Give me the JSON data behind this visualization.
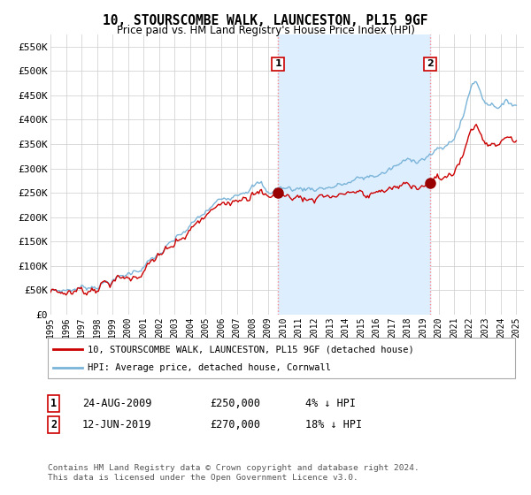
{
  "title": "10, STOURSCOMBE WALK, LAUNCESTON, PL15 9GF",
  "subtitle": "Price paid vs. HM Land Registry's House Price Index (HPI)",
  "legend_line1": "10, STOURSCOMBE WALK, LAUNCESTON, PL15 9GF (detached house)",
  "legend_line2": "HPI: Average price, detached house, Cornwall",
  "transaction1_label": "1",
  "transaction1_date": "24-AUG-2009",
  "transaction1_price": "£250,000",
  "transaction1_hpi": "4% ↓ HPI",
  "transaction2_label": "2",
  "transaction2_date": "12-JUN-2019",
  "transaction2_price": "£270,000",
  "transaction2_hpi": "18% ↓ HPI",
  "footer": "Contains HM Land Registry data © Crown copyright and database right 2024.\nThis data is licensed under the Open Government Licence v3.0.",
  "hpi_color": "#7ab4d8",
  "hpi_fill_color": "#ddeeff",
  "price_color": "#cc0000",
  "marker_color": "#990000",
  "vline_color": "#ff8888",
  "background_color": "#ffffff",
  "grid_color": "#cccccc",
  "ylim_min": 0,
  "ylim_max": 575000,
  "yticks": [
    0,
    50000,
    100000,
    150000,
    200000,
    250000,
    300000,
    350000,
    400000,
    450000,
    500000,
    550000
  ],
  "ytick_labels": [
    "£0",
    "£50K",
    "£100K",
    "£150K",
    "£200K",
    "£250K",
    "£300K",
    "£350K",
    "£400K",
    "£450K",
    "£500K",
    "£550K"
  ],
  "xmin": 1995.0,
  "xmax": 2025.5,
  "transaction1_x": 2009.65,
  "transaction2_x": 2019.45,
  "transaction1_y": 250000,
  "transaction2_y": 270000
}
